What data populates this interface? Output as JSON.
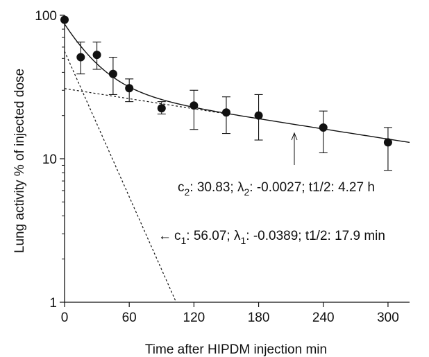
{
  "chart_data": {
    "type": "scatter",
    "title": "",
    "xlabel": "Time after HIPDM injection  min",
    "ylabel": "Lung activity  % of injected dose",
    "x_scale": "linear",
    "y_scale": "log",
    "xlim": [
      0,
      320
    ],
    "ylim": [
      1,
      100
    ],
    "x_ticks": [
      0,
      60,
      120,
      180,
      240,
      300
    ],
    "x_tick_labels": [
      "0",
      "60",
      "120",
      "180",
      "240",
      "300"
    ],
    "y_ticks": [
      1,
      10,
      100
    ],
    "y_tick_labels": [
      "1",
      "10",
      "100"
    ],
    "grid": false,
    "series": [
      {
        "kind": "points_with_error_bars",
        "points": [
          {
            "x": 0,
            "y": 93,
            "err_low": null,
            "err_high": null
          },
          {
            "x": 15,
            "y": 51,
            "err_low": 39,
            "err_high": 65
          },
          {
            "x": 30,
            "y": 53,
            "err_low": 42,
            "err_high": 65
          },
          {
            "x": 45,
            "y": 39,
            "err_low": 28,
            "err_high": 51
          },
          {
            "x": 60,
            "y": 31,
            "err_low": 25,
            "err_high": 36
          },
          {
            "x": 90,
            "y": 22.5,
            "err_low": 20.5,
            "err_high": 25
          },
          {
            "x": 120,
            "y": 23.5,
            "err_low": 16,
            "err_high": 30
          },
          {
            "x": 150,
            "y": 21,
            "err_low": 15,
            "err_high": 27
          },
          {
            "x": 180,
            "y": 20,
            "err_low": 13.5,
            "err_high": 28
          },
          {
            "x": 240,
            "y": 16.5,
            "err_low": 11,
            "err_high": 21.5
          },
          {
            "x": 300,
            "y": 13,
            "err_low": 8.3,
            "err_high": 16.5
          }
        ]
      },
      {
        "kind": "biexponential_fit",
        "components": [
          {
            "c": 56.07,
            "lambda": -0.0389
          },
          {
            "c": 30.83,
            "lambda": -0.0027
          }
        ]
      },
      {
        "kind": "component_fast",
        "c": 56.07,
        "lambda": -0.0389
      },
      {
        "kind": "component_slow",
        "c": 30.83,
        "lambda": -0.0027
      }
    ],
    "annotations": {
      "slow": {
        "c": "c",
        "c_sub": "2",
        "c_rest": ": 30.83; ",
        "l": "λ",
        "l_sub": "2",
        "l_rest": ": -0.0027; t1/2: 4.27 h"
      },
      "fast": {
        "arrow": "←",
        "c": "c",
        "c_sub": "1",
        "c_rest": ": 56.07; ",
        "l": "λ",
        "l_sub": "1",
        "l_rest": ": -0.0389; t1/2: 17.9 min"
      }
    }
  }
}
